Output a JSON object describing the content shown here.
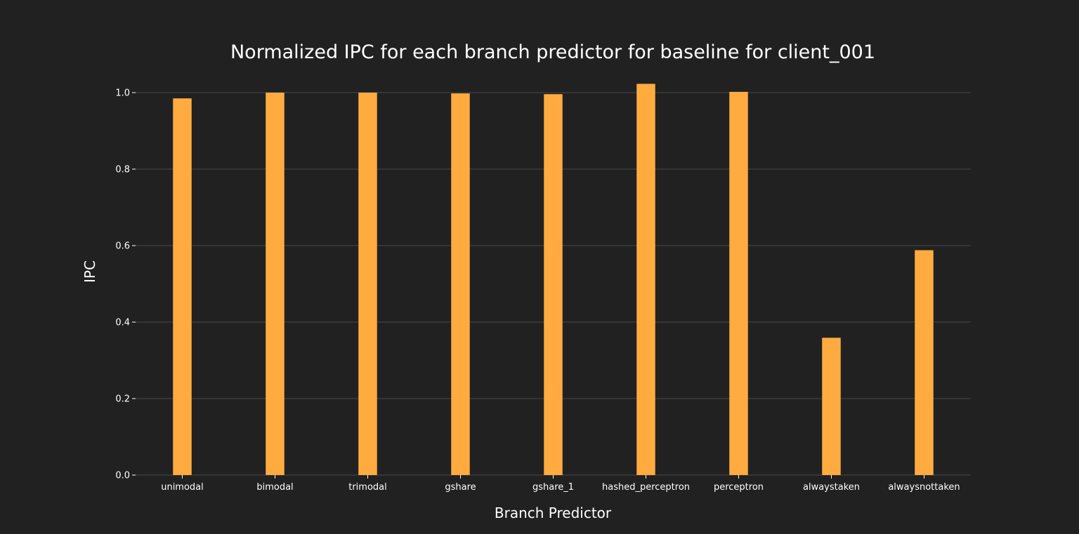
{
  "chart_data": {
    "type": "bar",
    "title": "Normalized IPC for each branch predictor for baseline for client_001",
    "xlabel": "Branch Predictor",
    "ylabel": "IPC",
    "categories": [
      "unimodal",
      "bimodal",
      "trimodal",
      "gshare",
      "gshare_1",
      "hashed_perceptron",
      "perceptron",
      "alwaystaken",
      "alwaysnottaken"
    ],
    "values": [
      0.985,
      1.0,
      1.0,
      0.998,
      0.996,
      1.023,
      1.002,
      0.359,
      0.588
    ],
    "ylim": [
      0,
      1.0
    ],
    "yticks": [
      0.0,
      0.2,
      0.4,
      0.6,
      0.8,
      1.0
    ],
    "ytick_labels": [
      "0.0",
      "0.2",
      "0.4",
      "0.6",
      "0.8",
      "1.0"
    ],
    "grid": true,
    "bar_color": "#ffab40",
    "background_color": "#212121",
    "grid_color": "#3c3c3c"
  }
}
